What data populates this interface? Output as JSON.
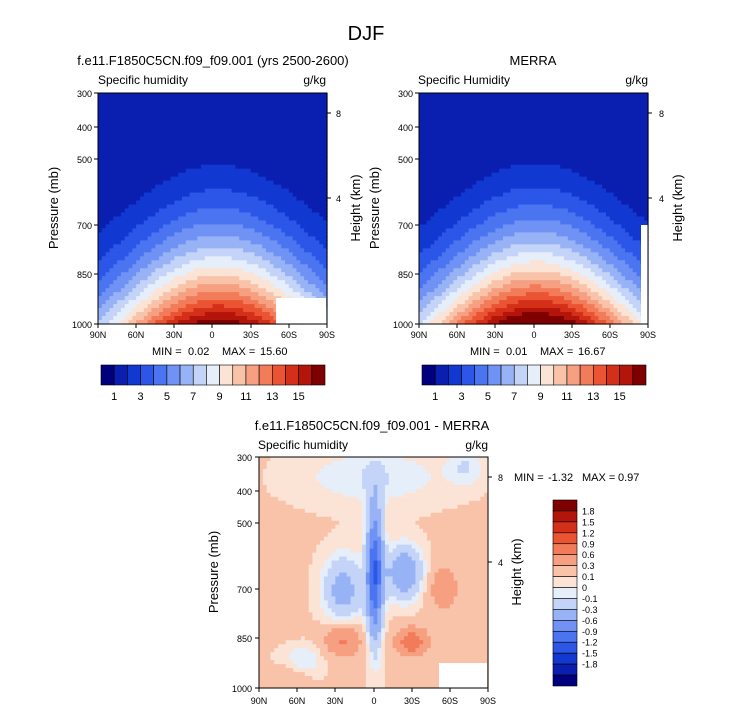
{
  "figure": {
    "title": "DJF"
  },
  "chart_data": [
    {
      "type": "heatmap",
      "title": "f.e11.F1850C5CN.f09_f09.001 (yrs 2500-2600)",
      "left_label": "Specific humidity",
      "right_label": "g/kg",
      "ylabel": "Pressure (mb)",
      "y2label": "Height (km)",
      "xticks": [
        "90N",
        "60N",
        "30N",
        "0",
        "30S",
        "60S",
        "90S"
      ],
      "yticks": [
        300,
        400,
        500,
        700,
        850,
        1000
      ],
      "y2ticks": [
        8,
        4
      ],
      "ylim": [
        1000,
        300
      ],
      "min_label": "MIN =",
      "min_value": "0.02",
      "max_label": "MAX =",
      "max_value": "15.60",
      "peak_value": 15.6,
      "peak_lat": -5,
      "levels": [
        0,
        1,
        2,
        3,
        4,
        5,
        6,
        7,
        8,
        9,
        10,
        11,
        12,
        13,
        14,
        15,
        16
      ]
    },
    {
      "type": "heatmap",
      "title": "MERRA",
      "left_label": "Specific Humidity",
      "right_label": "g/kg",
      "ylabel": "Pressure (mb)",
      "y2label": "Height (km)",
      "xticks": [
        "90N",
        "60N",
        "30N",
        "0",
        "30S",
        "60S",
        "90S"
      ],
      "yticks": [
        300,
        400,
        500,
        700,
        850,
        1000
      ],
      "y2ticks": [
        8,
        4
      ],
      "ylim": [
        1000,
        300
      ],
      "min_label": "MIN =",
      "min_value": "0.01",
      "max_label": "MAX =",
      "max_value": "16.67",
      "peak_value": 16.67,
      "peak_lat": -2,
      "levels": [
        0,
        1,
        2,
        3,
        4,
        5,
        6,
        7,
        8,
        9,
        10,
        11,
        12,
        13,
        14,
        15,
        16
      ]
    },
    {
      "type": "heatmap",
      "title": "f.e11.F1850C5CN.f09_f09.001 - MERRA",
      "left_label": "Specific humidity",
      "right_label": "g/kg",
      "ylabel": "Pressure (mb)",
      "y2label": "Height (km)",
      "xticks": [
        "90N",
        "60N",
        "30N",
        "0",
        "30S",
        "60S",
        "90S"
      ],
      "yticks": [
        300,
        400,
        500,
        700,
        850,
        1000
      ],
      "y2ticks": [
        8,
        4
      ],
      "ylim": [
        1000,
        300
      ],
      "min_label": "MIN =",
      "min_value": "-1.32",
      "max_label": "MAX =",
      "max_value": "0.97",
      "levels": [
        -2.1,
        -1.8,
        -1.5,
        -1.2,
        -0.9,
        -0.6,
        -0.3,
        -0.1,
        0,
        0.1,
        0.3,
        0.6,
        0.9,
        1.2,
        1.5,
        1.8,
        2.1
      ]
    }
  ],
  "colorbar_abs": {
    "tick_labels": [
      "1",
      "3",
      "5",
      "7",
      "9",
      "11",
      "13",
      "15"
    ],
    "colors": [
      "#00007f",
      "#0a1fb0",
      "#1238d2",
      "#2b56e8",
      "#4a74f0",
      "#6f92f4",
      "#98b2f6",
      "#c4d4f8",
      "#e6eefa",
      "#fbe3d6",
      "#f9c3aa",
      "#f6a081",
      "#f27b59",
      "#ea5433",
      "#d43019",
      "#b3150b",
      "#7f0000"
    ]
  },
  "colorbar_diff": {
    "tick_labels": [
      "1.8",
      "1.5",
      "1.2",
      "0.9",
      "0.6",
      "0.3",
      "0.1",
      "0",
      "-0.1",
      "-0.3",
      "-0.6",
      "-0.9",
      "-1.2",
      "-1.5",
      "-1.8"
    ],
    "colors": [
      "#7f0000",
      "#b3150b",
      "#d43019",
      "#ea5433",
      "#f27b59",
      "#f6a081",
      "#f9c3aa",
      "#fbe3d6",
      "#e6eefa",
      "#c4d4f8",
      "#98b2f6",
      "#6f92f4",
      "#4a74f0",
      "#2b56e8",
      "#1238d2",
      "#0a1fb0",
      "#00007f"
    ]
  }
}
